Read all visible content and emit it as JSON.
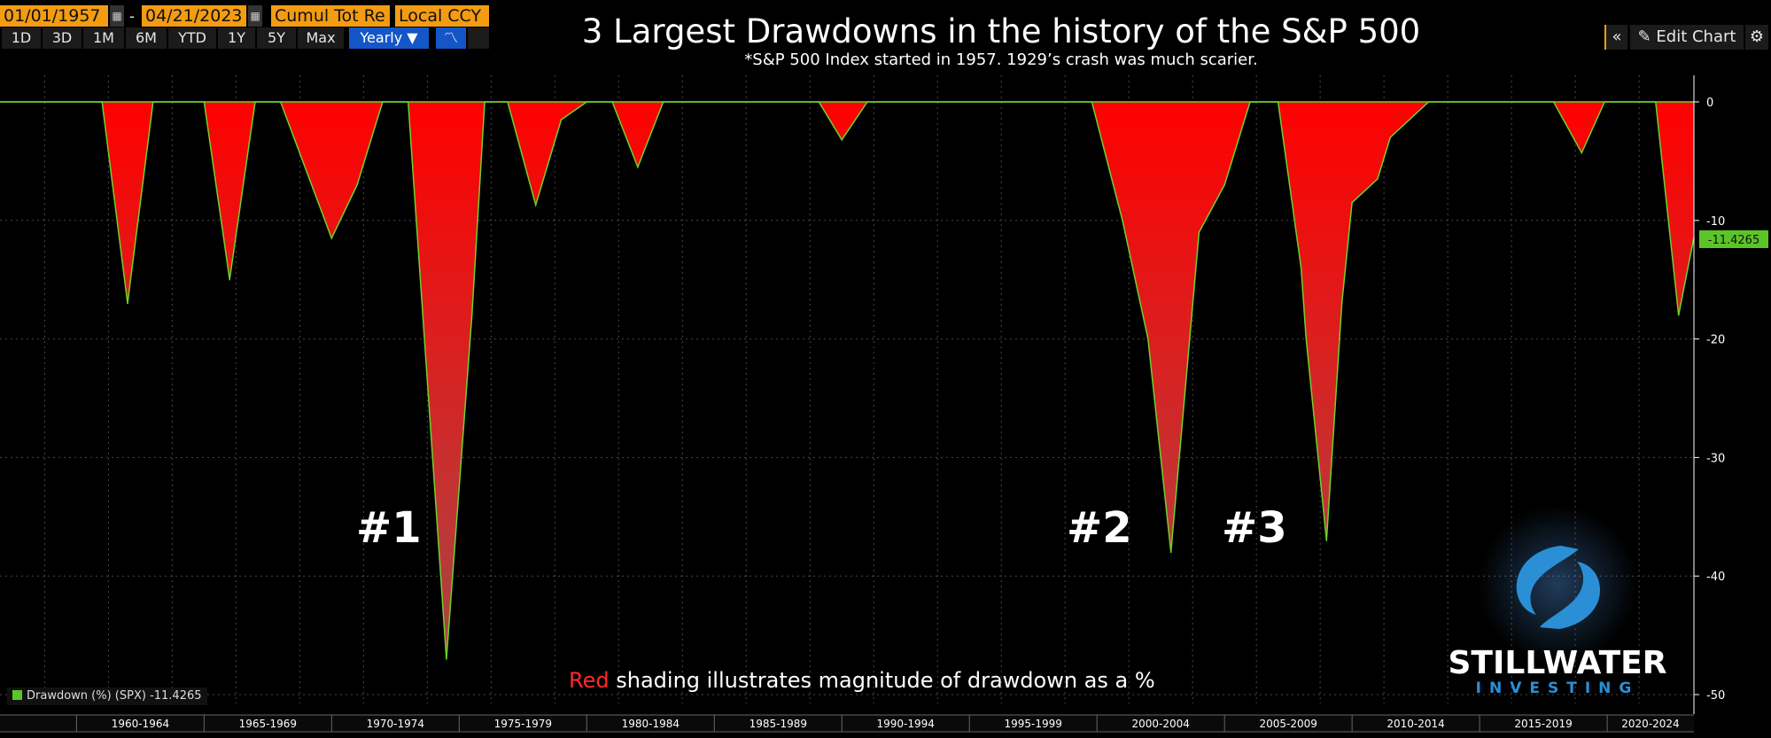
{
  "toolbar": {
    "start_date": "01/01/1957",
    "end_date": "04/21/2023",
    "separator": "-",
    "mode": "Cumul Tot Re",
    "currency": "Local CCY",
    "periods": [
      "1D",
      "3D",
      "1M",
      "6M",
      "YTD",
      "1Y",
      "5Y",
      "Max"
    ],
    "frequency": "Yearly ▼",
    "edit_chart": "Edit Chart"
  },
  "colors": {
    "fill": "#ff0000",
    "line": "#6fd12b",
    "axis": "#ffffff",
    "accent": "#f39c12",
    "selected": "#1456c8",
    "logo": "#2b8fd6"
  },
  "labels": {
    "n1": "#1",
    "n2": "#2",
    "n3": "#3"
  },
  "annotation": {
    "red_word": "Red",
    "rest": " shading illustrates magnitude of drawdown as a %"
  },
  "logo": {
    "name": "STILLWATER",
    "sub": "INVESTING"
  },
  "legend": {
    "text": "Drawdown (%) (SPX) -11.4265"
  },
  "chart_data": {
    "type": "area",
    "title": "3 Largest Drawdowns in the history of the S&P 500",
    "subtitle": "*S&P 500 Index started in 1957.  1929’s crash was much scarier.",
    "xlim": [
      1957,
      2023.4
    ],
    "ylim": [
      -50,
      0
    ],
    "y_ticks": [
      0,
      -10,
      -20,
      -30,
      -40,
      -50
    ],
    "y_tick_labels": [
      "0",
      "-10",
      "-20",
      "-30",
      "-40",
      "-50"
    ],
    "x_categories": [
      "1960-1964",
      "1965-1969",
      "1970-1974",
      "1975-1979",
      "1980-1984",
      "1985-1989",
      "1990-1994",
      "1995-1999",
      "2000-2004",
      "2005-2009",
      "2010-2014",
      "2015-2019",
      "2020-2024"
    ],
    "x_category_starts": [
      1960,
      1965,
      1970,
      1975,
      1980,
      1985,
      1990,
      1995,
      2000,
      2005,
      2010,
      2015,
      2020
    ],
    "last_value": -11.4265,
    "last_value_label": "-11.4265",
    "grid": true,
    "series": [
      {
        "name": "Drawdown (%) (SPX)",
        "x": [
          1957,
          1961,
          1962,
          1963,
          1965,
          1966,
          1967,
          1968,
          1970,
          1971,
          1972,
          1973,
          1974.5,
          1975.5,
          1976,
          1976.9,
          1978,
          1979,
          1980,
          1981,
          1982,
          1983,
          1989.1,
          1990,
          1991,
          1999.8,
          2001,
          2002,
          2002.9,
          2004,
          2005,
          2006,
          2007.1,
          2008,
          2008.2,
          2009,
          2009.6,
          2010,
          2011,
          2011.5,
          2013,
          2017.9,
          2019,
          2019.9,
          2021.9,
          2022.8,
          2023.4
        ],
        "y": [
          0,
          0,
          -17,
          0,
          0,
          -15,
          0,
          0,
          -11.5,
          -7,
          0,
          0,
          -47,
          -18,
          0,
          0,
          -8.7,
          -1.5,
          0,
          0,
          -5.5,
          0,
          0,
          -3.2,
          0,
          0,
          -10,
          -20,
          -38,
          -11,
          -7,
          0,
          0,
          -14,
          -20,
          -37,
          -17,
          -8.5,
          -6.5,
          -3,
          0,
          0,
          -4.3,
          0,
          0,
          -18,
          -11.4265
        ]
      }
    ]
  }
}
